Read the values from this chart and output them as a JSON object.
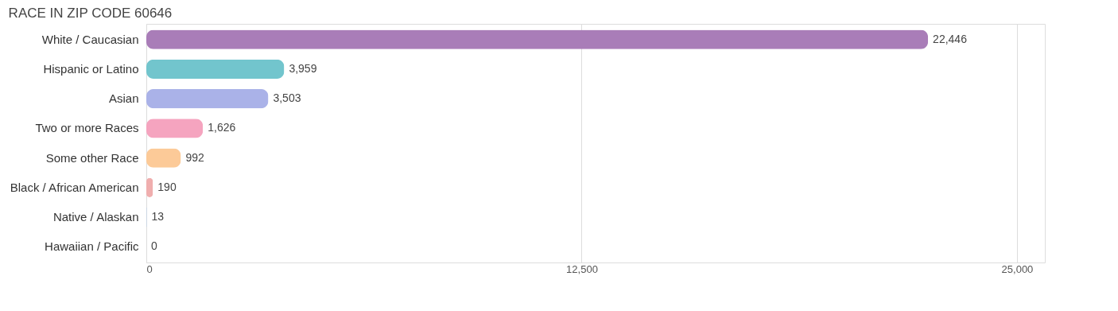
{
  "chart_data": {
    "type": "bar",
    "orientation": "horizontal",
    "title": "RACE IN ZIP CODE 60646",
    "categories": [
      "White / Caucasian",
      "Hispanic or Latino",
      "Asian",
      "Two or more Races",
      "Some other Race",
      "Black / African American",
      "Native / Alaskan",
      "Hawaiian / Pacific"
    ],
    "values": [
      22446,
      3959,
      3503,
      1626,
      992,
      190,
      13,
      0
    ],
    "colors": [
      "#a97db8",
      "#72c5cd",
      "#aab2e8",
      "#f5a4bf",
      "#fcca98",
      "#f0aeae",
      "#a8c9ef",
      "#d2b3d7"
    ],
    "value_labels": [
      "22,446",
      "3,959",
      "3,503",
      "1,626",
      "992",
      "190",
      "13",
      "0"
    ],
    "xlim": [
      0,
      25800
    ],
    "xticks": [
      0,
      {
        "value": 12500,
        "label": "12,500"
      },
      {
        "value": 25000,
        "label": "25,000"
      }
    ],
    "grid": "x"
  }
}
